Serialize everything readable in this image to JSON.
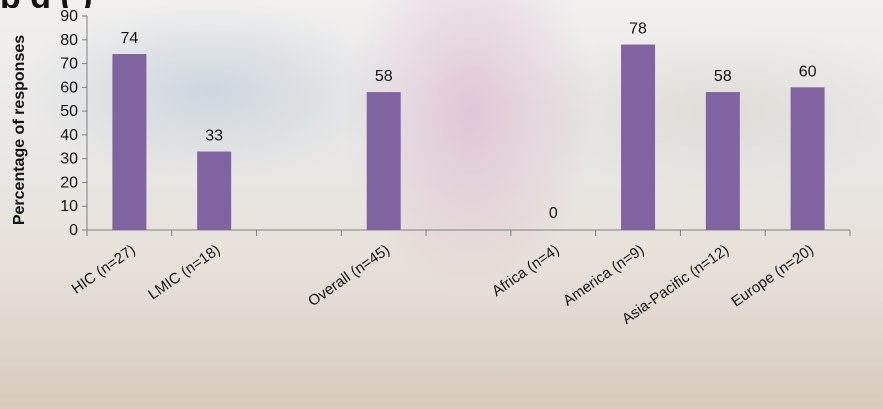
{
  "chart_data": {
    "type": "bar",
    "title": "",
    "xlabel": "",
    "ylabel": "Percentage of responses",
    "ylim": [
      0,
      90
    ],
    "yticks": [
      0,
      10,
      20,
      30,
      40,
      50,
      60,
      70,
      80,
      90
    ],
    "categories": [
      "HIC (n=27)",
      "LMIC (n=18)",
      "",
      "Overall (n=45)",
      "",
      "Africa (n=4)",
      "America (n=9)",
      "Asia-Pacific (n=12)",
      "Europe (n=20)"
    ],
    "values": [
      74,
      33,
      null,
      58,
      null,
      0,
      78,
      58,
      60
    ],
    "data_labels": [
      "74",
      "33",
      "",
      "58",
      "",
      "0",
      "78",
      "58",
      "60"
    ],
    "bar_color": "#8064a2",
    "grid": false,
    "legend": "none"
  },
  "title_fragment": "p                                    g              (     )"
}
